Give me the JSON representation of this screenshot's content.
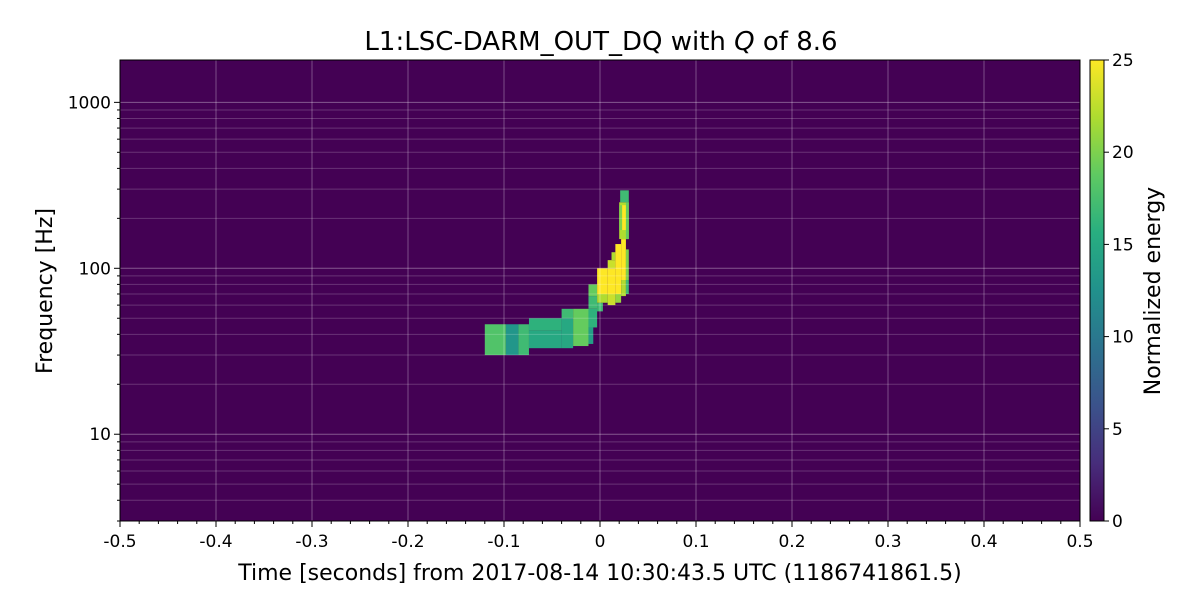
{
  "chart_data": {
    "type": "heatmap",
    "title_prefix": "L1:LSC-DARM_OUT_DQ with ",
    "title_q_symbol": "Q",
    "title_suffix": " of 8.6",
    "xlabel": "Time [seconds] from 2017-08-14 10:30:43.5 UTC (1186741861.5)",
    "ylabel": "Frequency [Hz]",
    "colorbar_label": "Normalized energy",
    "xlim": [
      -0.5,
      0.5
    ],
    "ylim": [
      3,
      1800
    ],
    "yscale": "log",
    "x_ticks": [
      -0.5,
      -0.4,
      -0.3,
      -0.2,
      -0.1,
      0,
      0.1,
      0.2,
      0.3,
      0.4,
      0.5
    ],
    "x_tick_labels": [
      "-0.5",
      "-0.4",
      "-0.3",
      "-0.2",
      "-0.1",
      "0",
      "0.1",
      "0.2",
      "0.3",
      "0.4",
      "0.5"
    ],
    "y_ticks": [
      10,
      100,
      1000
    ],
    "y_tick_labels": [
      "10",
      "100",
      "1000"
    ],
    "colorbar_ticks": [
      0,
      5,
      10,
      15,
      20,
      25
    ],
    "colorbar_tick_labels": [
      "0",
      "5",
      "10",
      "15",
      "20",
      "25"
    ],
    "color_range": [
      0,
      25
    ],
    "colormap": "viridis",
    "background_value": 0,
    "grid": true,
    "tiles": [
      {
        "t0": -0.12,
        "t1": -0.098,
        "f0": 30,
        "f1": 46,
        "value": 18
      },
      {
        "t0": -0.098,
        "t1": -0.085,
        "f0": 30,
        "f1": 46,
        "value": 13
      },
      {
        "t0": -0.085,
        "t1": -0.074,
        "f0": 30,
        "f1": 46,
        "value": 17
      },
      {
        "t0": -0.074,
        "t1": -0.04,
        "f0": 33,
        "f1": 42,
        "value": 15
      },
      {
        "t0": -0.074,
        "t1": -0.04,
        "f0": 42,
        "f1": 50,
        "value": 16
      },
      {
        "t0": -0.04,
        "t1": -0.028,
        "f0": 33,
        "f1": 50,
        "value": 15
      },
      {
        "t0": -0.04,
        "t1": -0.028,
        "f0": 50,
        "f1": 57,
        "value": 17
      },
      {
        "t0": -0.028,
        "t1": -0.012,
        "f0": 34,
        "f1": 57,
        "value": 19
      },
      {
        "t0": -0.012,
        "t1": -0.007,
        "f0": 35,
        "f1": 44,
        "value": 14
      },
      {
        "t0": -0.012,
        "t1": -0.003,
        "f0": 44,
        "f1": 57,
        "value": 16
      },
      {
        "t0": -0.012,
        "t1": -0.003,
        "f0": 57,
        "f1": 68,
        "value": 17
      },
      {
        "t0": -0.012,
        "t1": -0.003,
        "f0": 68,
        "f1": 80,
        "value": 19
      },
      {
        "t0": -0.003,
        "t1": 0.003,
        "f0": 55,
        "f1": 62,
        "value": 17
      },
      {
        "t0": -0.003,
        "t1": 0.008,
        "f0": 62,
        "f1": 70,
        "value": 22
      },
      {
        "t0": -0.003,
        "t1": 0.008,
        "f0": 70,
        "f1": 100,
        "value": 25
      },
      {
        "t0": 0.008,
        "t1": 0.016,
        "f0": 60,
        "f1": 70,
        "value": 23
      },
      {
        "t0": 0.008,
        "t1": 0.016,
        "f0": 70,
        "f1": 100,
        "value": 25
      },
      {
        "t0": 0.008,
        "t1": 0.016,
        "f0": 100,
        "f1": 112,
        "value": 23
      },
      {
        "t0": 0.012,
        "t1": 0.016,
        "f0": 112,
        "f1": 125,
        "value": 22
      },
      {
        "t0": 0.016,
        "t1": 0.022,
        "f0": 62,
        "f1": 70,
        "value": 21
      },
      {
        "t0": 0.016,
        "t1": 0.022,
        "f0": 70,
        "f1": 140,
        "value": 25
      },
      {
        "t0": 0.022,
        "t1": 0.027,
        "f0": 68,
        "f1": 85,
        "value": 22
      },
      {
        "t0": 0.022,
        "t1": 0.027,
        "f0": 85,
        "f1": 150,
        "value": 25
      },
      {
        "t0": 0.027,
        "t1": 0.03,
        "f0": 70,
        "f1": 85,
        "value": 17
      },
      {
        "t0": 0.027,
        "t1": 0.03,
        "f0": 85,
        "f1": 130,
        "value": 20
      },
      {
        "t0": 0.02,
        "t1": 0.03,
        "f0": 150,
        "f1": 250,
        "value": 22
      },
      {
        "t0": 0.023,
        "t1": 0.027,
        "f0": 170,
        "f1": 240,
        "value": 25
      },
      {
        "t0": 0.02,
        "t1": 0.023,
        "f0": 170,
        "f1": 240,
        "value": 20
      },
      {
        "t0": 0.027,
        "t1": 0.03,
        "f0": 150,
        "f1": 250,
        "value": 19
      },
      {
        "t0": 0.021,
        "t1": 0.03,
        "f0": 250,
        "f1": 295,
        "value": 17
      }
    ]
  }
}
